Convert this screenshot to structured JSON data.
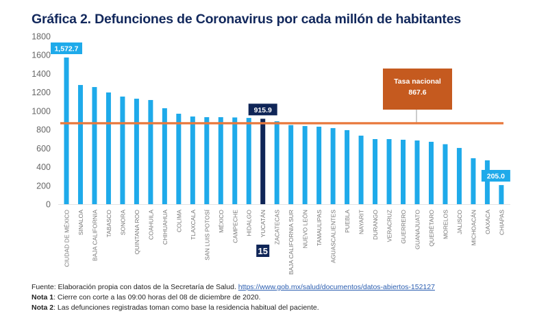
{
  "chart_data": {
    "type": "bar",
    "title": "Gráfica 2. Defunciones de Coronavirus por cada millón de habitantes",
    "xlabel": "",
    "ylabel": "",
    "ylim": [
      0,
      1800
    ],
    "yticks": [
      0,
      200,
      400,
      600,
      800,
      1000,
      1200,
      1400,
      1600,
      1800
    ],
    "grid": false,
    "categories": [
      "CIUDAD DE MÉXICO",
      "SINALOA",
      "BAJA CALIFORNIA",
      "TABASCO",
      "SONORA",
      "QUINTANA ROO",
      "COAHUILA",
      "CHIHUAHUA",
      "COLIMA",
      "TLAXCALA",
      "SAN LUIS POTOSÍ",
      "MÉXICO",
      "CAMPECHE",
      "HIDALGO",
      "YUCATÁN",
      "ZACATECAS",
      "BAJA CALIFORNIA SUR",
      "NUEVO LEÓN",
      "TAMAULIPAS",
      "AGUASCALIENTES",
      "PUEBLA",
      "NAYARIT",
      "DURANGO",
      "VERACRUZ",
      "GUERRERO",
      "GUANAJUATO",
      "QUERÉTARO",
      "MORELOS",
      "JALISCO",
      "MICHOACÁN",
      "OAXACA",
      "CHIAPAS"
    ],
    "values": [
      1572.7,
      1278,
      1256,
      1198,
      1154,
      1131,
      1117,
      1029,
      970,
      940,
      933,
      933,
      930,
      925,
      915.9,
      889,
      848,
      838,
      831,
      816,
      794,
      735,
      698,
      698,
      691,
      683,
      669,
      643,
      603,
      493,
      470,
      205.0
    ],
    "highlight_index": 14,
    "highlight_rank": "15",
    "data_labels": [
      {
        "index": 0,
        "text": "1,572.7"
      },
      {
        "index": 14,
        "text": "915.9"
      },
      {
        "index": 31,
        "text": "205.0"
      }
    ],
    "reference_line": {
      "value": 867.6,
      "label_line1": "Tasa nacional",
      "label_line2": "867.6"
    },
    "colors": {
      "bar": "#1eaaea",
      "highlight": "#0f2557",
      "reference": "#e8783c",
      "reference_box": "#c55a1f",
      "axis_text": "#666666"
    }
  },
  "notes": {
    "source_prefix": "Fuente: Elaboración propia con datos de la Secretaría de Salud. ",
    "source_link": "https://www.gob.mx/salud/documentos/datos-abiertos-152127",
    "note1_label": "Nota 1",
    "note1_text": ": Cierre con corte a las 09:00 horas del 08 de diciembre de 2020.",
    "note2_label": "Nota 2",
    "note2_text": ": Las defunciones registradas toman como base la residencia habitual del paciente."
  }
}
